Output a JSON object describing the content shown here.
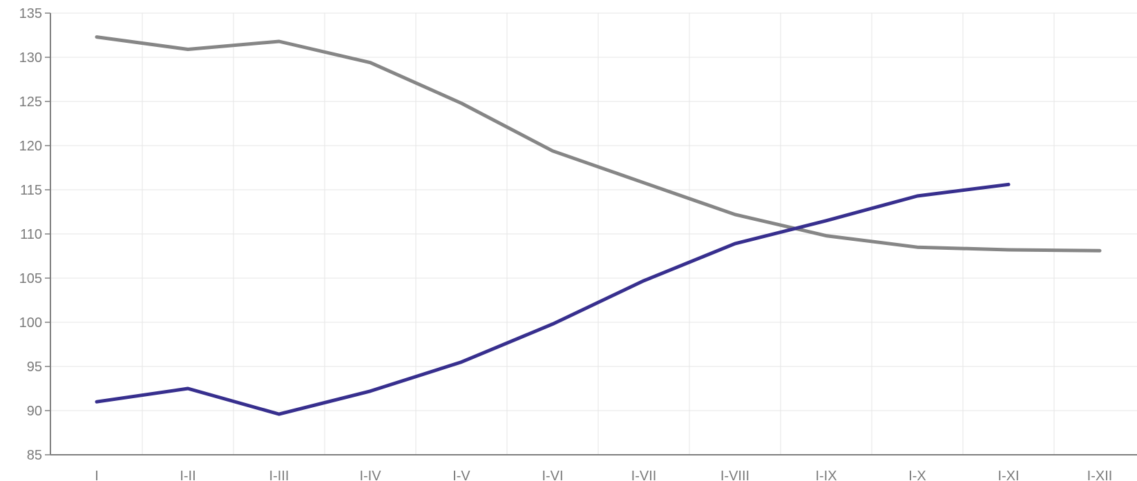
{
  "chart_data": {
    "type": "line",
    "title": "",
    "xlabel": "",
    "ylabel": "",
    "categories": [
      "I",
      "I-II",
      "I-III",
      "I-IV",
      "I-V",
      "I-VI",
      "I-VII",
      "I-VIII",
      "I-IX",
      "I-X",
      "I-XI",
      "I-XII"
    ],
    "ylim": [
      85,
      135
    ],
    "y_ticks": [
      85,
      90,
      95,
      100,
      105,
      110,
      115,
      120,
      125,
      130,
      135
    ],
    "grid": true,
    "legend": "none",
    "series": [
      {
        "color": "#868686",
        "values": [
          132.3,
          130.9,
          131.8,
          129.4,
          124.8,
          119.4,
          115.8,
          112.2,
          109.8,
          108.5,
          108.2,
          108.1
        ]
      },
      {
        "color": "#372F8E",
        "values": [
          91.0,
          92.5,
          89.6,
          92.2,
          95.5,
          99.8,
          104.7,
          108.9,
          111.5,
          114.3,
          115.6,
          null
        ]
      }
    ]
  }
}
